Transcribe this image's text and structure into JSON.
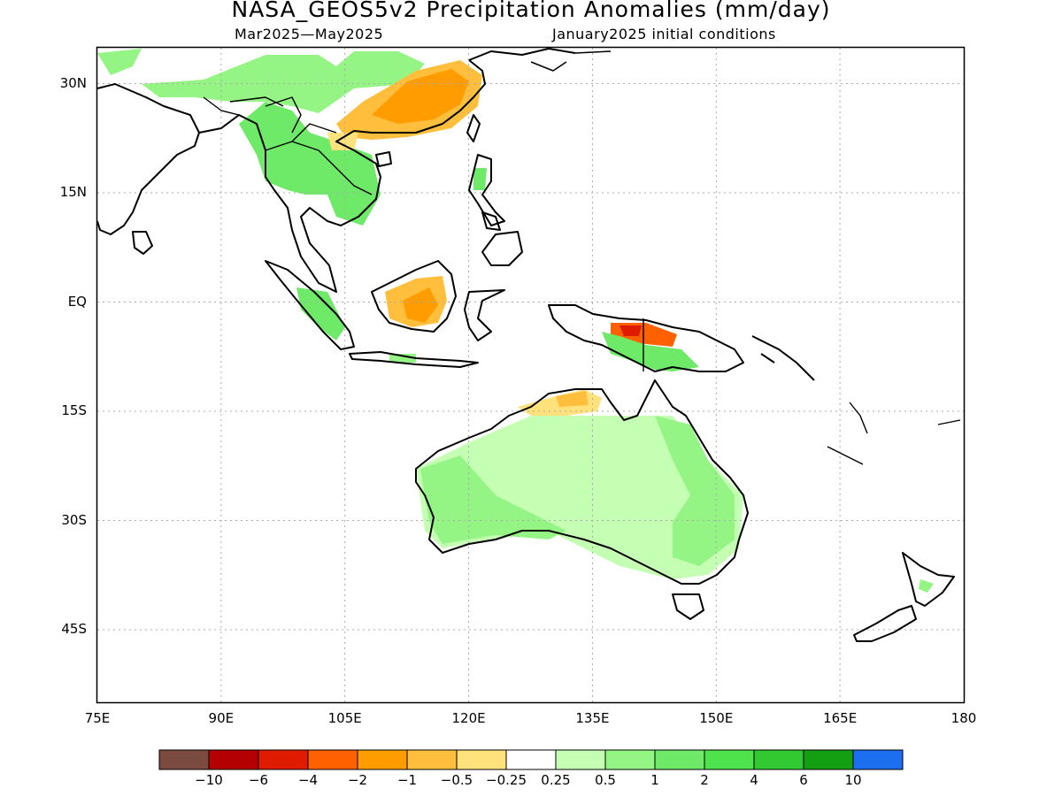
{
  "title": "NASA_GEOS5v2 Precipitation Anomalies (mm/day)",
  "period": "Mar2025—May2025",
  "init": "January2025 initial conditions",
  "lat_labels": [
    "30N",
    "15N",
    "EQ",
    "15S",
    "30S",
    "45S"
  ],
  "lon_labels": [
    "75E",
    "90E",
    "105E",
    "120E",
    "135E",
    "150E",
    "165E",
    "180"
  ],
  "colorbar": {
    "colors": [
      "#7b4b3f",
      "#b40000",
      "#e01c00",
      "#ff6000",
      "#ff9c00",
      "#ffbe3c",
      "#ffe27c",
      "#ffffff",
      "#c4ffb4",
      "#94f484",
      "#6eea68",
      "#4ee24c",
      "#32c832",
      "#12a012",
      "#1e6ef0"
    ],
    "labels": [
      "−10",
      "−6",
      "−4",
      "−2",
      "−1",
      "−0.5",
      "−0.25",
      "0.25",
      "0.5",
      "1",
      "2",
      "4",
      "6",
      "10"
    ]
  },
  "map": {
    "lon_range": [
      75,
      180
    ],
    "lat_range": [
      -55,
      35
    ],
    "land_color": "#000000"
  }
}
